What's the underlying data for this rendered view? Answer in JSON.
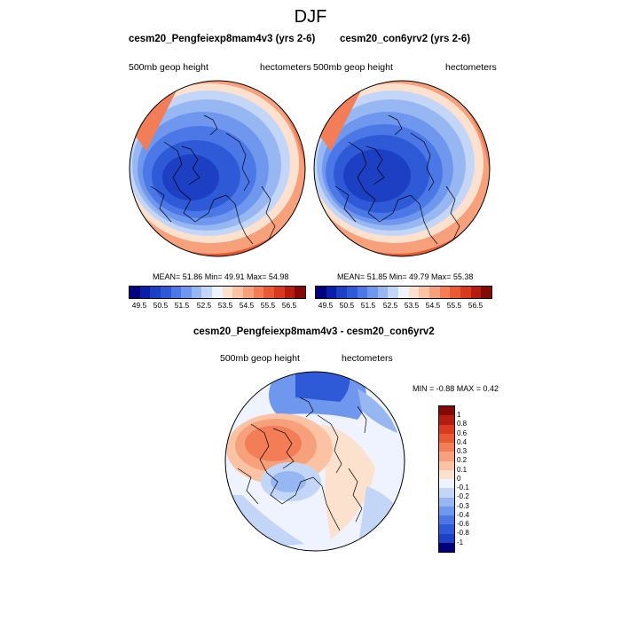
{
  "main_title": "DJF",
  "colors": {
    "blue_levels": [
      "#00007f",
      "#0a1ea8",
      "#1c3fc4",
      "#2e5ad8",
      "#4b78e6",
      "#6f97ee",
      "#97b7f3",
      "#c3d6f7"
    ],
    "near_zero": "#eef3ff",
    "red_levels": [
      "#fde1cf",
      "#fbc3a4",
      "#f7a07c",
      "#f27d56",
      "#e85934",
      "#d8391f",
      "#b51c10",
      "#830a06"
    ]
  },
  "panels": [
    {
      "title": "cesm20_Pengfeiexp8mam4v3 (yrs 2-6)",
      "left_label": "500mb geop height",
      "right_label": "hectometers",
      "stats_text": "MEAN=  51.86  Min=  49.91  Max=  54.98",
      "mean": 51.86,
      "min": 49.91,
      "max": 54.98
    },
    {
      "title": "cesm20_con6yrv2 (yrs 2-6)",
      "left_label": "500mb geop height",
      "right_label": "hectometers",
      "stats_text": "MEAN=  51.85  Min=  49.79  Max=  55.38",
      "mean": 51.85,
      "min": 49.79,
      "max": 55.38
    }
  ],
  "colorbar_ticks": [
    "49.5",
    "50.5",
    "51.5",
    "52.5",
    "53.5",
    "54.5",
    "55.5",
    "56.5"
  ],
  "diff": {
    "title": "cesm20_Pengfeiexp8mam4v3 - cesm20_con6yrv2",
    "left_label": "500mb geop height",
    "right_label": "hectometers",
    "minmax_text": "MIN =  -0.88 MAX =   0.42",
    "min": -0.88,
    "max": 0.42,
    "colorbar_labels": [
      "1",
      "0.8",
      "0.6",
      "0.4",
      "0.3",
      "0.2",
      "0.1",
      "0",
      "-0.1",
      "-0.2",
      "-0.3",
      "-0.4",
      "-0.6",
      "-0.8",
      "-1"
    ]
  }
}
